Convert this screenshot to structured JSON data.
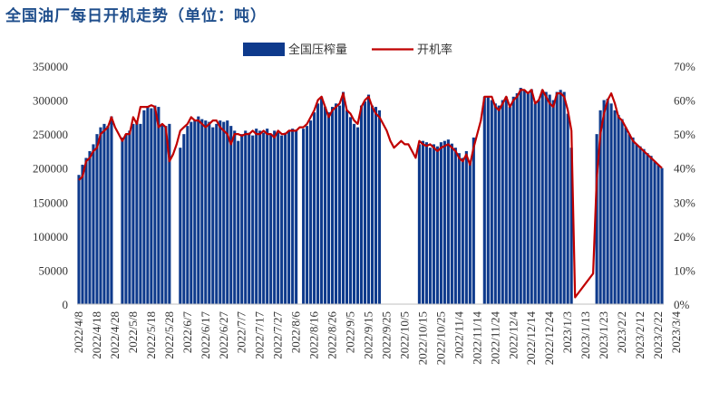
{
  "title": "全国油厂每日开机走势（单位：吨）",
  "colors": {
    "bars": "#0e3a8c",
    "line": "#c00000",
    "title": "#1f4e8c"
  },
  "chart_data": {
    "type": "bar",
    "title": "全国油厂每日开机走势（单位：吨）",
    "legend_position": "top-center",
    "grid": false,
    "y_left": {
      "ylim": [
        0,
        350000
      ],
      "ticks": [
        "0",
        "50000",
        "100000",
        "150000",
        "200000",
        "250000",
        "300000",
        "350000"
      ]
    },
    "y_right": {
      "ylim": [
        0,
        70
      ],
      "ticks": [
        "0%",
        "10%",
        "20%",
        "30%",
        "40%",
        "50%",
        "60%",
        "70%"
      ]
    },
    "x_tick_labels": [
      "2022/4/8",
      "2022/4/18",
      "2022/4/28",
      "2022/5/8",
      "2022/5/18",
      "2022/5/28",
      "2022/6/7",
      "2022/6/17",
      "2022/6/27",
      "2022/7/7",
      "2022/7/17",
      "2022/7/27",
      "2022/8/6",
      "2022/8/16",
      "2022/8/26",
      "2022/9/5",
      "2022/9/15",
      "2022/9/25",
      "2022/10/5",
      "2022/10/15",
      "2022/10/25",
      "2022/11/4",
      "2022/11/14",
      "2022/11/24",
      "2022/12/4",
      "2022/12/14",
      "2022/12/24",
      "2023/1/3",
      "2023/1/13",
      "2023/1/23",
      "2023/2/2",
      "2023/2/12",
      "2023/2/22",
      "2023/3/4"
    ],
    "series": [
      {
        "name": "全国压榨量",
        "type": "bar",
        "axis": "left",
        "values": [
          [
            0,
            190000
          ],
          [
            1,
            205000
          ],
          [
            2,
            215000
          ],
          [
            3,
            225000
          ],
          [
            4,
            235000
          ],
          [
            5,
            250000
          ],
          [
            6,
            260000
          ],
          [
            7,
            265000
          ],
          [
            8,
            262000
          ],
          [
            9,
            276000
          ],
          [
            12,
            245000
          ],
          [
            13,
            250000
          ],
          [
            14,
            255000
          ],
          [
            15,
            265000
          ],
          [
            16,
            270000
          ],
          [
            17,
            265000
          ],
          [
            18,
            285000
          ],
          [
            19,
            290000
          ],
          [
            20,
            288000
          ],
          [
            21,
            292000
          ],
          [
            22,
            290000
          ],
          [
            23,
            265000
          ],
          [
            24,
            262000
          ],
          [
            25,
            265000
          ],
          [
            28,
            230000
          ],
          [
            29,
            250000
          ],
          [
            30,
            262000
          ],
          [
            31,
            268000
          ],
          [
            32,
            270000
          ],
          [
            33,
            276000
          ],
          [
            34,
            272000
          ],
          [
            35,
            270000
          ],
          [
            36,
            268000
          ],
          [
            37,
            260000
          ],
          [
            38,
            265000
          ],
          [
            39,
            270000
          ],
          [
            40,
            268000
          ],
          [
            41,
            270000
          ],
          [
            42,
            262000
          ],
          [
            43,
            255000
          ],
          [
            44,
            240000
          ],
          [
            45,
            250000
          ],
          [
            46,
            255000
          ],
          [
            47,
            252000
          ],
          [
            48,
            248000
          ],
          [
            49,
            258000
          ],
          [
            50,
            255000
          ],
          [
            51,
            252000
          ],
          [
            52,
            258000
          ],
          [
            53,
            250000
          ],
          [
            54,
            255000
          ],
          [
            55,
            252000
          ],
          [
            56,
            248000
          ],
          [
            57,
            252000
          ],
          [
            58,
            255000
          ],
          [
            59,
            258000
          ],
          [
            60,
            255000
          ],
          [
            62,
            258000
          ],
          [
            63,
            262000
          ],
          [
            64,
            270000
          ],
          [
            65,
            282000
          ],
          [
            66,
            295000
          ],
          [
            67,
            305000
          ],
          [
            68,
            290000
          ],
          [
            69,
            282000
          ],
          [
            70,
            290000
          ],
          [
            71,
            295000
          ],
          [
            72,
            292000
          ],
          [
            73,
            312000
          ],
          [
            74,
            285000
          ],
          [
            75,
            275000
          ],
          [
            76,
            265000
          ],
          [
            77,
            260000
          ],
          [
            78,
            292000
          ],
          [
            79,
            298000
          ],
          [
            80,
            308000
          ],
          [
            81,
            292000
          ],
          [
            82,
            290000
          ],
          [
            83,
            285000
          ],
          [
            94,
            235000
          ],
          [
            95,
            240000
          ],
          [
            96,
            238000
          ],
          [
            97,
            230000
          ],
          [
            98,
            235000
          ],
          [
            99,
            232000
          ],
          [
            100,
            238000
          ],
          [
            101,
            240000
          ],
          [
            102,
            242000
          ],
          [
            103,
            236000
          ],
          [
            104,
            230000
          ],
          [
            105,
            222000
          ],
          [
            106,
            215000
          ],
          [
            107,
            225000
          ],
          [
            108,
            210000
          ],
          [
            109,
            245000
          ],
          [
            112,
            305000
          ],
          [
            113,
            305000
          ],
          [
            114,
            300000
          ],
          [
            115,
            295000
          ],
          [
            116,
            292000
          ],
          [
            117,
            300000
          ],
          [
            118,
            305000
          ],
          [
            119,
            290000
          ],
          [
            120,
            305000
          ],
          [
            121,
            310000
          ],
          [
            122,
            318000
          ],
          [
            123,
            315000
          ],
          [
            124,
            312000
          ],
          [
            125,
            316000
          ],
          [
            126,
            295000
          ],
          [
            127,
            300000
          ],
          [
            128,
            315000
          ],
          [
            129,
            312000
          ],
          [
            130,
            308000
          ],
          [
            131,
            300000
          ],
          [
            132,
            312000
          ],
          [
            133,
            315000
          ],
          [
            134,
            312000
          ],
          [
            135,
            280000
          ],
          [
            136,
            230000
          ],
          [
            143,
            250000
          ],
          [
            144,
            285000
          ],
          [
            145,
            300000
          ],
          [
            146,
            302000
          ],
          [
            147,
            295000
          ],
          [
            148,
            285000
          ],
          [
            149,
            278000
          ],
          [
            150,
            272000
          ],
          [
            151,
            260000
          ],
          [
            152,
            250000
          ],
          [
            153,
            245000
          ],
          [
            154,
            235000
          ],
          [
            155,
            232000
          ],
          [
            156,
            228000
          ],
          [
            157,
            222000
          ],
          [
            158,
            218000
          ],
          [
            159,
            210000
          ],
          [
            160,
            205000
          ],
          [
            161,
            200000
          ]
        ]
      },
      {
        "name": "开机率",
        "type": "line",
        "axis": "right",
        "points": [
          [
            0,
            36.5
          ],
          [
            1,
            37.5
          ],
          [
            2,
            42
          ],
          [
            3,
            43
          ],
          [
            4,
            45
          ],
          [
            5,
            46
          ],
          [
            6,
            50
          ],
          [
            7,
            51
          ],
          [
            8,
            52
          ],
          [
            9,
            55
          ],
          [
            10,
            52
          ],
          [
            11,
            50
          ],
          [
            12,
            48
          ],
          [
            13,
            50
          ],
          [
            14,
            50
          ],
          [
            15,
            55
          ],
          [
            16,
            53
          ],
          [
            17,
            58
          ],
          [
            18,
            58
          ],
          [
            19,
            58
          ],
          [
            20,
            58.5
          ],
          [
            21,
            58
          ],
          [
            22,
            52
          ],
          [
            23,
            53
          ],
          [
            24,
            52
          ],
          [
            25,
            42
          ],
          [
            26,
            44
          ],
          [
            27,
            47
          ],
          [
            28,
            51
          ],
          [
            29,
            52
          ],
          [
            30,
            53
          ],
          [
            31,
            55
          ],
          [
            32,
            54
          ],
          [
            33,
            54
          ],
          [
            34,
            53
          ],
          [
            35,
            52
          ],
          [
            36,
            53
          ],
          [
            37,
            54
          ],
          [
            38,
            54
          ],
          [
            39,
            52
          ],
          [
            40,
            51
          ],
          [
            41,
            50
          ],
          [
            42,
            47
          ],
          [
            43,
            50
          ],
          [
            44,
            50
          ],
          [
            45,
            49.5
          ],
          [
            46,
            50
          ],
          [
            47,
            50
          ],
          [
            48,
            51
          ],
          [
            49,
            50
          ],
          [
            50,
            50
          ],
          [
            51,
            51
          ],
          [
            52,
            50
          ],
          [
            53,
            50
          ],
          [
            54,
            49
          ],
          [
            55,
            51
          ],
          [
            56,
            50
          ],
          [
            57,
            50
          ],
          [
            58,
            51
          ],
          [
            59,
            51
          ],
          [
            60,
            51
          ],
          [
            61,
            52
          ],
          [
            62,
            52
          ],
          [
            63,
            53
          ],
          [
            64,
            55
          ],
          [
            65,
            57
          ],
          [
            66,
            60
          ],
          [
            67,
            61
          ],
          [
            68,
            58
          ],
          [
            69,
            55
          ],
          [
            70,
            57
          ],
          [
            71,
            58
          ],
          [
            72,
            59
          ],
          [
            73,
            62
          ],
          [
            74,
            57
          ],
          [
            75,
            56
          ],
          [
            76,
            54
          ],
          [
            77,
            53
          ],
          [
            78,
            58
          ],
          [
            79,
            60
          ],
          [
            80,
            61
          ],
          [
            81,
            58
          ],
          [
            82,
            56
          ],
          [
            83,
            55
          ],
          [
            84,
            53
          ],
          [
            85,
            51
          ],
          [
            86,
            48
          ],
          [
            87,
            46
          ],
          [
            88,
            47
          ],
          [
            89,
            48
          ],
          [
            90,
            47
          ],
          [
            91,
            47
          ],
          [
            92,
            45
          ],
          [
            93,
            43
          ],
          [
            94,
            48
          ],
          [
            95,
            47
          ],
          [
            96,
            46.5
          ],
          [
            97,
            47
          ],
          [
            98,
            46
          ],
          [
            99,
            45
          ],
          [
            100,
            46
          ],
          [
            101,
            46.5
          ],
          [
            102,
            47
          ],
          [
            103,
            46
          ],
          [
            104,
            45
          ],
          [
            105,
            43
          ],
          [
            106,
            42
          ],
          [
            107,
            44
          ],
          [
            108,
            41
          ],
          [
            109,
            46
          ],
          [
            110,
            50
          ],
          [
            111,
            54
          ],
          [
            112,
            61
          ],
          [
            113,
            61
          ],
          [
            114,
            61
          ],
          [
            115,
            58
          ],
          [
            116,
            57
          ],
          [
            117,
            59
          ],
          [
            118,
            61
          ],
          [
            119,
            58
          ],
          [
            120,
            60
          ],
          [
            121,
            61
          ],
          [
            122,
            63
          ],
          [
            123,
            63
          ],
          [
            124,
            62
          ],
          [
            125,
            63
          ],
          [
            126,
            59
          ],
          [
            127,
            60
          ],
          [
            128,
            63
          ],
          [
            129,
            61
          ],
          [
            130,
            59
          ],
          [
            131,
            58
          ],
          [
            132,
            62
          ],
          [
            133,
            62
          ],
          [
            134,
            61
          ],
          [
            135,
            57
          ],
          [
            136,
            51
          ],
          [
            137,
            2
          ],
          [
            142,
            9
          ],
          [
            143,
            37
          ],
          [
            144,
            50
          ],
          [
            145,
            56
          ],
          [
            146,
            60
          ],
          [
            147,
            62
          ],
          [
            148,
            59
          ],
          [
            149,
            55
          ],
          [
            150,
            54
          ],
          [
            151,
            52
          ],
          [
            152,
            50
          ],
          [
            153,
            48
          ],
          [
            154,
            47
          ],
          [
            155,
            46
          ],
          [
            156,
            45
          ],
          [
            157,
            44
          ],
          [
            158,
            43
          ],
          [
            159,
            42
          ],
          [
            160,
            41
          ],
          [
            161,
            40
          ]
        ]
      }
    ]
  }
}
